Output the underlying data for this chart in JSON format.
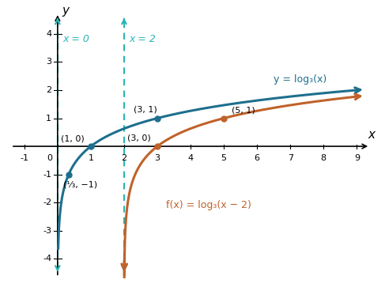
{
  "xlim": [
    -1.5,
    9.5
  ],
  "ylim": [
    -4.7,
    4.9
  ],
  "xtick_vals": [
    -1,
    0,
    1,
    2,
    3,
    4,
    5,
    6,
    7,
    8,
    9
  ],
  "ytick_vals": [
    -4,
    -3,
    -2,
    -1,
    1,
    2,
    3,
    4
  ],
  "xlabel": "x",
  "ylabel": "y",
  "parent_color": "#1e6f8e",
  "translated_color": "#c0622a",
  "asymptote_color": "#2ab5b5",
  "parent_label": "y = log₃(x)",
  "translated_label": "f(x) = log₃(x − 2)",
  "asymptote1_label": "x = 0",
  "asymptote2_label": "x = 2",
  "parent_points": [
    [
      0.3333,
      -1
    ],
    [
      1,
      0
    ],
    [
      3,
      1
    ]
  ],
  "translated_points": [
    [
      3,
      0
    ],
    [
      5,
      1
    ]
  ],
  "parent_point_labels": [
    "(¹⁄₃, −1)",
    "(1, 0)",
    "(3, 1)"
  ],
  "translated_point_labels": [
    "(3, 0)",
    "(5, 1)"
  ]
}
